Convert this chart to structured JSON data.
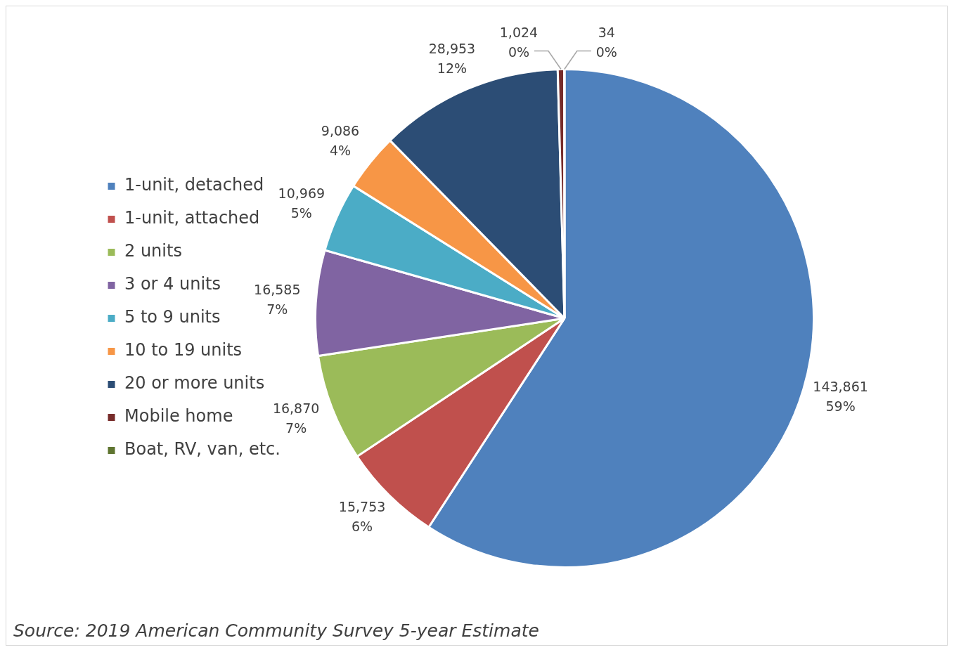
{
  "chart_data": {
    "type": "pie",
    "categories": [
      "1-unit, detached",
      "1-unit, attached",
      "2 units",
      "3 or 4 units",
      "5 to 9 units",
      "10 to 19 units",
      "20 or more units",
      "Mobile home",
      "Boat, RV, van, etc."
    ],
    "values": [
      143861,
      15753,
      16870,
      16585,
      10969,
      9086,
      28953,
      1024,
      34
    ],
    "colors": [
      "#4f81bd",
      "#c0504d",
      "#9bbb59",
      "#8064a2",
      "#4bacc6",
      "#f79646",
      "#2c4d75",
      "#772c2a",
      "#5f7530"
    ],
    "value_labels": [
      "143,861\n59%",
      "15,753\n6%",
      "16,870\n7%",
      "16,585\n7%",
      "10,969\n5%",
      "9,086\n4%",
      "28,953\n12%",
      "1,024\n0%",
      "34\n0%"
    ],
    "legend": "left",
    "annotations": [
      "Source: 2019 American Community Survey 5-year Estimate"
    ]
  }
}
